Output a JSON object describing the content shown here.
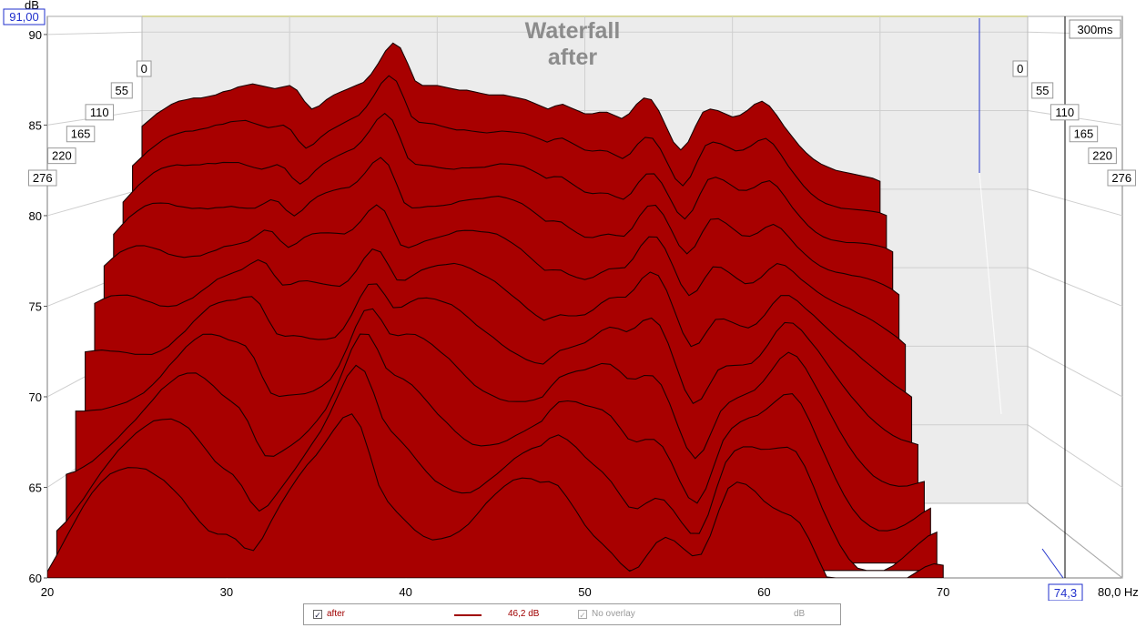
{
  "chart_data": {
    "type": "area",
    "title": "Waterfall",
    "subtitle": "after",
    "ylabel": "dB",
    "xlabel": "Hz",
    "ylim": [
      60,
      91
    ],
    "xlim": [
      20,
      80
    ],
    "y_max_label": "91,00",
    "y_ticks": [
      "90",
      "85",
      "80",
      "75",
      "70",
      "65",
      "60"
    ],
    "x_ticks": [
      "20",
      "30",
      "40",
      "50",
      "60",
      "70",
      "80,0 Hz"
    ],
    "x_tick_values": [
      20,
      30,
      40,
      50,
      60,
      70,
      80
    ],
    "x_cursor_label": "74,3",
    "x_cursor": 74.3,
    "time_axis_label": "300ms",
    "time_ticks": [
      "0",
      "55",
      "110",
      "165",
      "220",
      "276"
    ],
    "slices_ms": [
      0,
      27.6,
      55.2,
      82.8,
      110.4,
      138,
      165.6,
      193.2,
      220.8,
      248.4,
      276
    ],
    "front_curve": {
      "x": [
        20,
        20.5,
        21,
        21.5,
        22,
        22.5,
        23,
        23.5,
        24,
        24.5,
        25,
        25.5,
        26,
        26.5,
        27,
        27.5,
        28,
        28.5,
        29,
        29.5,
        30,
        30.5,
        31,
        31.5,
        32,
        32.5,
        33,
        33.5,
        34,
        34.5,
        35,
        35.5,
        36,
        36.5,
        37,
        37.5,
        38,
        38.5,
        39,
        39.5,
        40,
        40.5,
        41,
        41.5,
        42,
        42.5,
        43,
        43.5,
        44,
        44.5,
        45,
        45.5,
        46,
        46.5,
        47,
        47.5,
        48,
        48.5,
        49,
        49.5,
        50,
        50.5,
        51,
        51.5,
        52,
        52.5,
        53,
        53.5,
        54,
        54.5,
        55,
        55.5,
        56,
        56.5,
        57,
        57.5,
        58,
        58.5,
        59,
        59.5,
        60,
        60.5,
        61,
        61.5,
        62,
        62.5,
        63,
        63.5,
        64,
        64.5,
        65,
        65.5,
        66,
        66.5,
        67,
        67.5,
        68,
        68.5,
        69,
        69.5,
        70
      ],
      "y": [
        84,
        84.4,
        84.8,
        85.1,
        85.4,
        85.6,
        85.7,
        85.8,
        85.8,
        85.9,
        86,
        86.2,
        86.3,
        86.5,
        86.6,
        86.7,
        86.6,
        86.5,
        86.4,
        86.5,
        86.6,
        86.3,
        85.6,
        85.1,
        85.3,
        85.7,
        86,
        86.2,
        86.4,
        86.6,
        86.8,
        87.3,
        88,
        88.8,
        89.3,
        89,
        88,
        86.9,
        86.6,
        86.6,
        86.6,
        86.5,
        86.4,
        86.3,
        86.3,
        86.2,
        86.1,
        86,
        86,
        86,
        85.9,
        85.8,
        85.7,
        85.5,
        85.3,
        85.1,
        85.3,
        85.4,
        85.2,
        85,
        84.8,
        84.8,
        84.9,
        84.9,
        84.7,
        84.5,
        84.8,
        85.4,
        85.8,
        85.7,
        85,
        84,
        83,
        82.5,
        83,
        84,
        84.9,
        85.1,
        85,
        84.8,
        84.6,
        84.7,
        85,
        85.4,
        85.6,
        85.3,
        84.7,
        84,
        83.4,
        82.8,
        82.3,
        81.9,
        81.6,
        81.4,
        81.2,
        81.1,
        81,
        80.9,
        80.8,
        80.7,
        80.5
      ]
    }
  },
  "legend": {
    "series_name": "after",
    "series_value": "46,2 dB",
    "overlay_label": "No overlay",
    "overlay_value": "dB"
  }
}
